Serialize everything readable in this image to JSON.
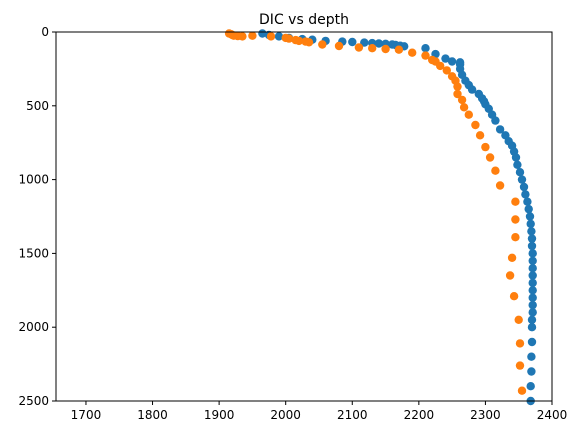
{
  "chart_data": {
    "type": "scatter",
    "title": "DIC vs depth",
    "xlabel": "",
    "ylabel": "",
    "xlim": [
      1655,
      2400
    ],
    "ylim": [
      0,
      2500
    ],
    "y_inverted": true,
    "grid": false,
    "xticks": [
      1700,
      1800,
      1900,
      2000,
      2100,
      2200,
      2300,
      2400
    ],
    "yticks": [
      0,
      500,
      1000,
      1500,
      2000,
      2500
    ],
    "series": [
      {
        "color": "#1f77b4",
        "points": [
          [
            1965,
            10
          ],
          [
            1975,
            20
          ],
          [
            1990,
            30
          ],
          [
            2005,
            40
          ],
          [
            2025,
            48
          ],
          [
            2040,
            52
          ],
          [
            2060,
            60
          ],
          [
            2085,
            65
          ],
          [
            2100,
            68
          ],
          [
            2118,
            72
          ],
          [
            2130,
            75
          ],
          [
            2140,
            78
          ],
          [
            2150,
            80
          ],
          [
            2160,
            85
          ],
          [
            2165,
            88
          ],
          [
            2172,
            93
          ],
          [
            2178,
            97
          ],
          [
            2210,
            110
          ],
          [
            2225,
            150
          ],
          [
            2240,
            180
          ],
          [
            2250,
            200
          ],
          [
            2262,
            205
          ],
          [
            2262,
            220
          ],
          [
            2262,
            250
          ],
          [
            2265,
            290
          ],
          [
            2270,
            330
          ],
          [
            2275,
            360
          ],
          [
            2280,
            390
          ],
          [
            2290,
            420
          ],
          [
            2295,
            450
          ],
          [
            2298,
            470
          ],
          [
            2300,
            490
          ],
          [
            2305,
            520
          ],
          [
            2310,
            560
          ],
          [
            2315,
            600
          ],
          [
            2322,
            660
          ],
          [
            2330,
            700
          ],
          [
            2335,
            740
          ],
          [
            2340,
            770
          ],
          [
            2343,
            810
          ],
          [
            2346,
            850
          ],
          [
            2348,
            900
          ],
          [
            2352,
            950
          ],
          [
            2355,
            1000
          ],
          [
            2358,
            1050
          ],
          [
            2360,
            1100
          ],
          [
            2363,
            1150
          ],
          [
            2365,
            1200
          ],
          [
            2367,
            1250
          ],
          [
            2368,
            1300
          ],
          [
            2369,
            1350
          ],
          [
            2370,
            1400
          ],
          [
            2370,
            1450
          ],
          [
            2371,
            1500
          ],
          [
            2371,
            1550
          ],
          [
            2371,
            1600
          ],
          [
            2371,
            1650
          ],
          [
            2371,
            1700
          ],
          [
            2371,
            1750
          ],
          [
            2371,
            1800
          ],
          [
            2371,
            1850
          ],
          [
            2371,
            1900
          ],
          [
            2370,
            1950
          ],
          [
            2370,
            2000
          ],
          [
            2370,
            2100
          ],
          [
            2369,
            2200
          ],
          [
            2369,
            2300
          ],
          [
            2368,
            2400
          ],
          [
            2368,
            2500
          ]
        ]
      },
      {
        "color": "#ff7f0e",
        "points": [
          [
            1915,
            10
          ],
          [
            1918,
            15
          ],
          [
            1920,
            20
          ],
          [
            1922,
            25
          ],
          [
            1928,
            28
          ],
          [
            1935,
            30
          ],
          [
            1950,
            25
          ],
          [
            1978,
            30
          ],
          [
            2000,
            40
          ],
          [
            2005,
            45
          ],
          [
            2015,
            55
          ],
          [
            2020,
            60
          ],
          [
            2030,
            65
          ],
          [
            2035,
            70
          ],
          [
            2055,
            85
          ],
          [
            2080,
            95
          ],
          [
            2110,
            105
          ],
          [
            2130,
            110
          ],
          [
            2150,
            115
          ],
          [
            2170,
            120
          ],
          [
            2190,
            140
          ],
          [
            2210,
            160
          ],
          [
            2220,
            190
          ],
          [
            2225,
            200
          ],
          [
            2232,
            230
          ],
          [
            2242,
            260
          ],
          [
            2250,
            300
          ],
          [
            2255,
            330
          ],
          [
            2258,
            370
          ],
          [
            2258,
            420
          ],
          [
            2265,
            460
          ],
          [
            2268,
            510
          ],
          [
            2275,
            560
          ],
          [
            2285,
            630
          ],
          [
            2292,
            700
          ],
          [
            2300,
            780
          ],
          [
            2307,
            850
          ],
          [
            2315,
            940
          ],
          [
            2322,
            1040
          ],
          [
            2345,
            1150
          ],
          [
            2345,
            1270
          ],
          [
            2345,
            1390
          ],
          [
            2340,
            1530
          ],
          [
            2337,
            1650
          ],
          [
            2343,
            1790
          ],
          [
            2350,
            1950
          ],
          [
            2352,
            2110
          ],
          [
            2352,
            2260
          ],
          [
            2355,
            2430
          ]
        ]
      }
    ]
  }
}
